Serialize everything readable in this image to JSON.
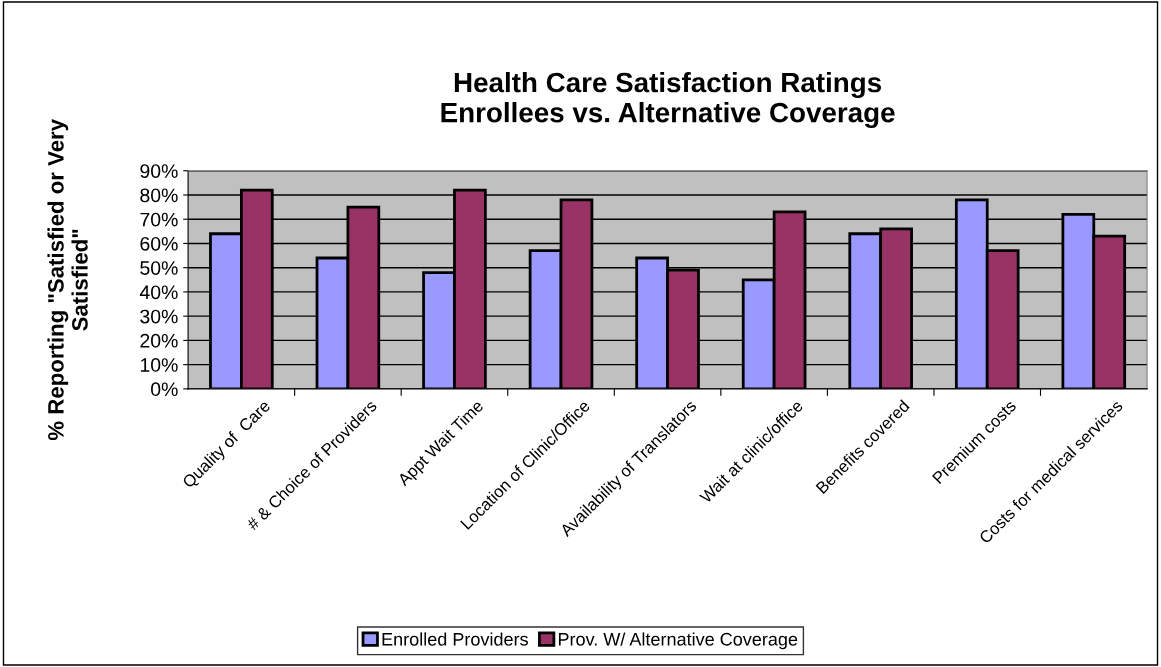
{
  "chart_data": {
    "type": "bar",
    "title": "Health Care Satisfaction Ratings\nEnrollees vs. Alternative Coverage",
    "ylabel": "% Reporting \"Satisfied or Very\nSatisfied\"",
    "categories": [
      "Quality of  Care",
      "# & Choice of Providers",
      "Appt Wait Time",
      "Location of Clinic/Office",
      "Availability of Translators",
      "Wait at clinic/office",
      "Benefits covered",
      "Premium costs",
      "Costs for medical services"
    ],
    "series": [
      {
        "name": "Enrolled Providers",
        "color": "#9999ff",
        "values": [
          64,
          54,
          48,
          57,
          54,
          45,
          64,
          78,
          72
        ]
      },
      {
        "name": "Prov. W/ Alternative Coverage",
        "color": "#993366",
        "values": [
          82,
          75,
          82,
          78,
          49,
          73,
          66,
          57,
          63
        ]
      }
    ],
    "ylim": [
      0,
      90
    ],
    "yticks": [
      {
        "value": 0,
        "label": "0%"
      },
      {
        "value": 10,
        "label": "10%"
      },
      {
        "value": 20,
        "label": "20%"
      },
      {
        "value": 30,
        "label": "30%"
      },
      {
        "value": 40,
        "label": "40%"
      },
      {
        "value": 50,
        "label": "50%"
      },
      {
        "value": 60,
        "label": "60%"
      },
      {
        "value": 70,
        "label": "70%"
      },
      {
        "value": 80,
        "label": "80%"
      },
      {
        "value": 90,
        "label": "90%"
      }
    ],
    "grid": "y",
    "legend": "bottom"
  }
}
